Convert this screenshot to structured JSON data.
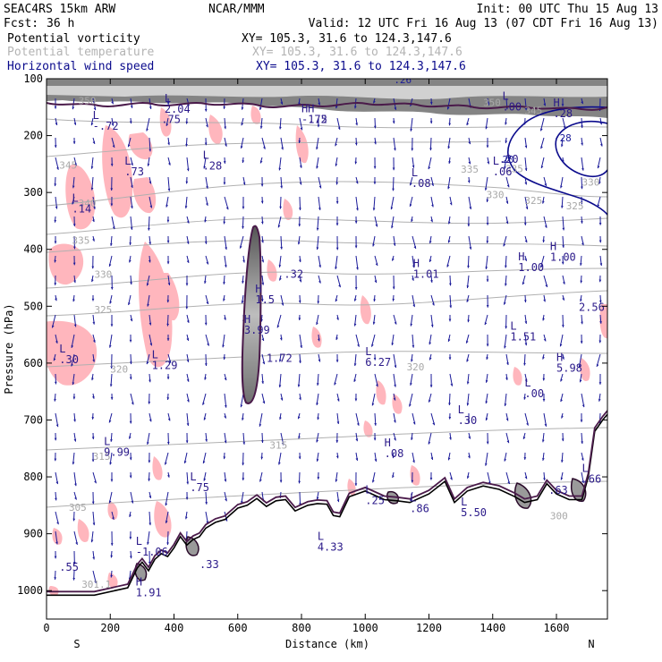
{
  "header": {
    "model": "SEAC4RS 15km ARW",
    "org": "NCAR/MMM",
    "init": "Init: 00 UTC Thu 15 Aug 13",
    "fcst_label": "Fcst:",
    "fcst_value": "36 h",
    "valid": "Valid: 12 UTC Fri 16 Aug 13 (07 CDT Fri 16 Aug 13)",
    "fields": [
      {
        "name": "Potential vorticity",
        "xy": "XY= 105.3, 31.6 to 124.3,147.6",
        "color": "#000000"
      },
      {
        "name": "Potential temperature",
        "xy": "XY= 105.3, 31.6 to 124.3,147.6",
        "color": "#b4b4b4"
      },
      {
        "name": "Horizontal wind speed",
        "xy": "XY= 105.3, 31.6 to 124.3,147.6",
        "color": "#0a0a8c"
      }
    ]
  },
  "chart_data": {
    "type": "cross-section",
    "xlabel": "Distance (km)",
    "ylabel": "Pressure (hPa)",
    "xlim": [
      0,
      1760
    ],
    "ylim": [
      1050,
      100
    ],
    "x_ticks": [
      0,
      200,
      400,
      600,
      800,
      1000,
      1200,
      1400,
      1600
    ],
    "y_ticks": [
      100,
      200,
      300,
      400,
      500,
      600,
      700,
      800,
      900,
      1000
    ],
    "endpoint_labels": {
      "left": "S",
      "right": "N"
    },
    "terrain": [
      [
        0,
        1008
      ],
      [
        150,
        1008
      ],
      [
        255,
        995
      ],
      [
        285,
        960
      ],
      [
        300,
        950
      ],
      [
        320,
        965
      ],
      [
        340,
        945
      ],
      [
        360,
        935
      ],
      [
        380,
        940
      ],
      [
        400,
        925
      ],
      [
        420,
        905
      ],
      [
        440,
        920
      ],
      [
        460,
        910
      ],
      [
        480,
        905
      ],
      [
        500,
        890
      ],
      [
        530,
        880
      ],
      [
        560,
        875
      ],
      [
        600,
        855
      ],
      [
        630,
        850
      ],
      [
        660,
        838
      ],
      [
        690,
        852
      ],
      [
        720,
        842
      ],
      [
        750,
        840
      ],
      [
        780,
        860
      ],
      [
        820,
        850
      ],
      [
        850,
        847
      ],
      [
        880,
        848
      ],
      [
        900,
        868
      ],
      [
        920,
        870
      ],
      [
        950,
        835
      ],
      [
        1000,
        825
      ],
      [
        1060,
        840
      ],
      [
        1100,
        842
      ],
      [
        1140,
        845
      ],
      [
        1200,
        830
      ],
      [
        1250,
        808
      ],
      [
        1280,
        845
      ],
      [
        1320,
        825
      ],
      [
        1370,
        816
      ],
      [
        1420,
        822
      ],
      [
        1470,
        835
      ],
      [
        1500,
        845
      ],
      [
        1540,
        840
      ],
      [
        1570,
        812
      ],
      [
        1600,
        830
      ],
      [
        1640,
        840
      ],
      [
        1680,
        840
      ],
      [
        1700,
        800
      ],
      [
        1720,
        720
      ],
      [
        1745,
        700
      ],
      [
        1760,
        690
      ]
    ],
    "theta_labels": [
      {
        "x": 100,
        "p": 145,
        "v": "350"
      },
      {
        "x": 40,
        "p": 258,
        "v": "345"
      },
      {
        "x": 100,
        "p": 325,
        "v": "340"
      },
      {
        "x": 80,
        "p": 390,
        "v": "335"
      },
      {
        "x": 150,
        "p": 450,
        "v": "330"
      },
      {
        "x": 150,
        "p": 512,
        "v": "325"
      },
      {
        "x": 200,
        "p": 617,
        "v": "320"
      },
      {
        "x": 1130,
        "p": 613,
        "v": "320"
      },
      {
        "x": 145,
        "p": 770,
        "v": "315"
      },
      {
        "x": 700,
        "p": 750,
        "v": "315"
      },
      {
        "x": 1370,
        "p": 148,
        "v": "350"
      },
      {
        "x": 1500,
        "p": 162,
        "v": "345"
      },
      {
        "x": 1300,
        "p": 265,
        "v": "335"
      },
      {
        "x": 1440,
        "p": 264,
        "v": "335"
      },
      {
        "x": 1380,
        "p": 310,
        "v": "330"
      },
      {
        "x": 1680,
        "p": 288,
        "v": "330"
      },
      {
        "x": 1630,
        "p": 330,
        "v": "325"
      },
      {
        "x": 1500,
        "p": 320,
        "v": "325"
      },
      {
        "x": 70,
        "p": 860,
        "v": "305"
      },
      {
        "x": 110,
        "p": 995,
        "v": "301.1"
      },
      {
        "x": 1580,
        "p": 875,
        "v": "300"
      }
    ],
    "extrema": [
      {
        "t": "L",
        "x": 145,
        "p": 190,
        "v": "-.72"
      },
      {
        "x": 370,
        "p": 160,
        "t": "L",
        "v": "2.04"
      },
      {
        "t": "",
        "x": 360,
        "p": 178,
        "v": ".75"
      },
      {
        "t": "L",
        "x": 245,
        "p": 270,
        "v": ".73"
      },
      {
        "t": "L",
        "x": 490,
        "p": 260,
        "v": ".28"
      },
      {
        "t": "L",
        "x": 80,
        "p": 335,
        "v": ".14"
      },
      {
        "t": "H",
        "x": 800,
        "p": 178,
        "v": "-1.5"
      },
      {
        "t": "H",
        "x": 820,
        "p": 178,
        "v": ".72"
      },
      {
        "t": "L",
        "x": 1145,
        "p": 290,
        "v": ".08"
      },
      {
        "t": "L",
        "x": 1400,
        "p": 270,
        "v": ".06"
      },
      {
        "t": "L",
        "x": 1430,
        "p": 156,
        "v": ".00"
      },
      {
        "t": "",
        "x": 1420,
        "p": 248,
        "v": ".20"
      },
      {
        "t": "H",
        "x": 1590,
        "p": 168,
        "v": ".28"
      },
      {
        "t": "H",
        "x": 1580,
        "p": 420,
        "v": "1.00"
      },
      {
        "t": "H",
        "x": 1480,
        "p": 438,
        "v": "1.00"
      },
      {
        "t": "H",
        "x": 1150,
        "p": 450,
        "v": "1.01"
      },
      {
        "t": "",
        "x": 745,
        "p": 450,
        "v": ".32"
      },
      {
        "t": "H",
        "x": 655,
        "p": 495,
        "v": "1.5"
      },
      {
        "t": "H",
        "x": 620,
        "p": 548,
        "v": "3.99"
      },
      {
        "t": "",
        "x": 690,
        "p": 598,
        "v": "1.72"
      },
      {
        "t": "L",
        "x": 1455,
        "p": 560,
        "v": "1.51"
      },
      {
        "t": "",
        "x": 1670,
        "p": 508,
        "v": "2.56"
      },
      {
        "t": "L",
        "x": 1000,
        "p": 605,
        "v": "6.27"
      },
      {
        "t": "L",
        "x": 40,
        "p": 600,
        "v": ".30"
      },
      {
        "t": "L",
        "x": 330,
        "p": 610,
        "v": "1.29"
      },
      {
        "t": "H",
        "x": 1600,
        "p": 615,
        "v": "5.98"
      },
      {
        "t": "L",
        "x": 1500,
        "p": 660,
        "v": ".00"
      },
      {
        "t": "L",
        "x": 1290,
        "p": 707,
        "v": ".30"
      },
      {
        "t": "H",
        "x": 1060,
        "p": 765,
        "v": ".08"
      },
      {
        "t": "L",
        "x": 180,
        "p": 763,
        "v": "9.99"
      },
      {
        "t": "L",
        "x": 450,
        "p": 825,
        "v": ".75"
      },
      {
        "t": "L",
        "x": 1000,
        "p": 848,
        "v": ".25"
      },
      {
        "t": "L",
        "x": 1140,
        "p": 862,
        "v": ".86"
      },
      {
        "t": "L",
        "x": 1300,
        "p": 869,
        "v": "5.50"
      },
      {
        "t": "L",
        "x": 1680,
        "p": 810,
        "v": ".66"
      },
      {
        "t": "",
        "x": 1575,
        "p": 830,
        "v": ".63"
      },
      {
        "t": "L",
        "x": 850,
        "p": 930,
        "v": "4.33"
      },
      {
        "t": "L",
        "x": 280,
        "p": 938,
        "v": "-1.06"
      },
      {
        "t": "",
        "x": 40,
        "p": 965,
        "v": ".55"
      },
      {
        "t": "",
        "x": 480,
        "p": 960,
        "v": ".33"
      },
      {
        "t": "H",
        "x": 280,
        "p": 1010,
        "v": "1.91"
      }
    ],
    "wind_labels": [
      {
        "x": 1090,
        "p": 108,
        "v": ".26"
      },
      {
        "x": 1610,
        "p": 210,
        "v": "28"
      },
      {
        "x": 1430,
        "p": 248,
        "v": "20"
      }
    ]
  }
}
